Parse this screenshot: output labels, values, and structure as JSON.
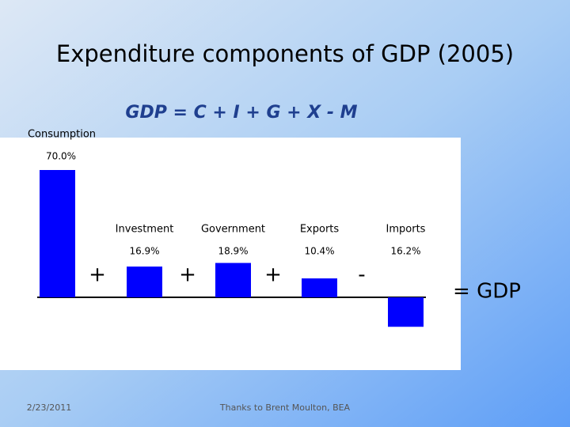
{
  "chart_data": {
    "type": "bar",
    "title": "Expenditure components of GDP  (2005)",
    "subtitle": "GDP = C + I + G + X - M",
    "categories": [
      "Consumption",
      "Investment",
      "Government",
      "Exports",
      "Imports"
    ],
    "values": [
      70.0,
      16.9,
      18.9,
      10.4,
      16.2
    ],
    "value_labels": [
      "70.0%",
      "16.9%",
      "18.9%",
      "10.4%",
      "16.2%"
    ],
    "operators": [
      "+",
      "+",
      "+",
      "-"
    ],
    "result": "= GDP",
    "color": "#0000ff"
  },
  "footer": {
    "date": "2/23/2011",
    "credit": "Thanks to Brent Moulton, BEA"
  }
}
